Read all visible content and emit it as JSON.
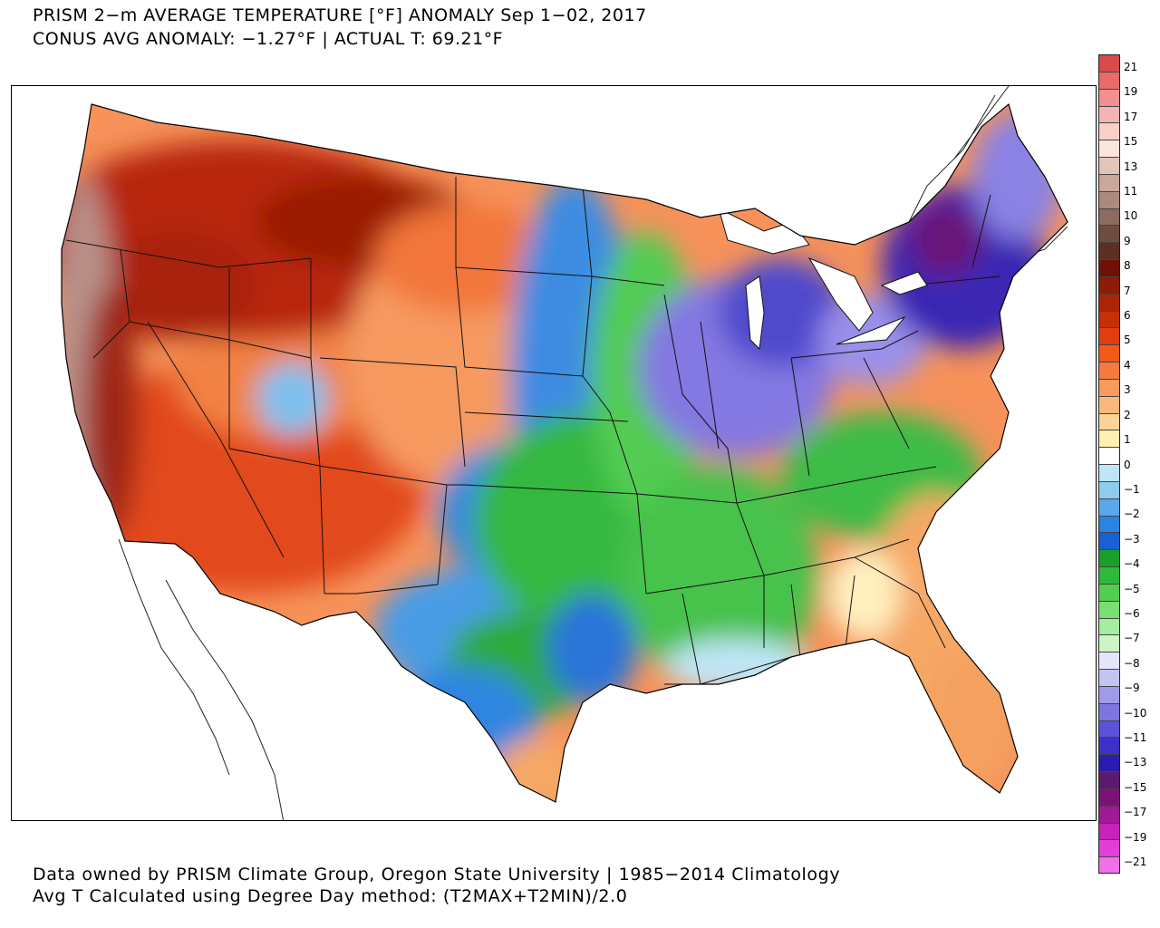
{
  "header": {
    "title_line1": "PRISM 2−m AVERAGE TEMPERATURE [°F] ANOMALY Sep 1−02, 2017",
    "title_line2": "CONUS AVG ANOMALY: −1.27°F | ACTUAL T: 69.21°F"
  },
  "footer": {
    "line1": "Data owned by PRISM Climate Group, Oregon State University | 1985−2014 Climatology",
    "line2": "Avg T Calculated using Degree Day method: (T2MAX+T2MIN)/2.0"
  },
  "legend": {
    "labels": [
      "21",
      "19",
      "17",
      "15",
      "13",
      "11",
      "10",
      "9",
      "8",
      "7",
      "6",
      "5",
      "4",
      "3",
      "2",
      "1",
      "0",
      "−1",
      "−2",
      "−3",
      "−4",
      "−5",
      "−6",
      "−7",
      "−8",
      "−9",
      "−10",
      "−11",
      "−13",
      "−15",
      "−17",
      "−19",
      "−21"
    ],
    "colors_top_to_bottom": [
      "#d94a4a",
      "#e86a6a",
      "#f09090",
      "#f5b4b4",
      "#f8d0c8",
      "#fbe6dc",
      "#e2c4b8",
      "#c9a79a",
      "#ad8a7e",
      "#8e6b60",
      "#6e4c42",
      "#5a2f24",
      "#6e1208",
      "#8e1a08",
      "#aa2408",
      "#c43008",
      "#e03e10",
      "#f25a1a",
      "#f67a3c",
      "#f99a5e",
      "#fbb87e",
      "#fcd49a",
      "#fef0b0",
      "#ffffff",
      "#bfe6f6",
      "#8fcaf0",
      "#5aa8ea",
      "#2a84e0",
      "#1662d2",
      "#1aa02a",
      "#30b83a",
      "#52cc52",
      "#7ade72",
      "#a4ecA0",
      "#ccf5c6",
      "#e6e6fa",
      "#c4c4f4",
      "#a09ae8",
      "#7e76e0",
      "#5c52d6",
      "#3c30c8",
      "#2a1cb0",
      "#5c1a6e",
      "#7a1278",
      "#a01a98",
      "#c424b8",
      "#e040d8",
      "#f070e8"
    ]
  },
  "map": {
    "regions": [
      {
        "name": "west-coast-warm",
        "color": "#a83a2a"
      },
      {
        "name": "northwest-hot",
        "color": "#c0300c"
      },
      {
        "name": "southwest-warm",
        "color": "#e85a24"
      },
      {
        "name": "central-plains-warm",
        "color": "#f6925a"
      },
      {
        "name": "great-plains-cool",
        "color": "#3a8ae0"
      },
      {
        "name": "midwest-green",
        "color": "#3cbf46"
      },
      {
        "name": "great-lakes-cold",
        "color": "#6c60d8"
      },
      {
        "name": "northeast-cold",
        "color": "#3a2cb8"
      },
      {
        "name": "southeast-warm",
        "color": "#f6a866"
      }
    ]
  }
}
